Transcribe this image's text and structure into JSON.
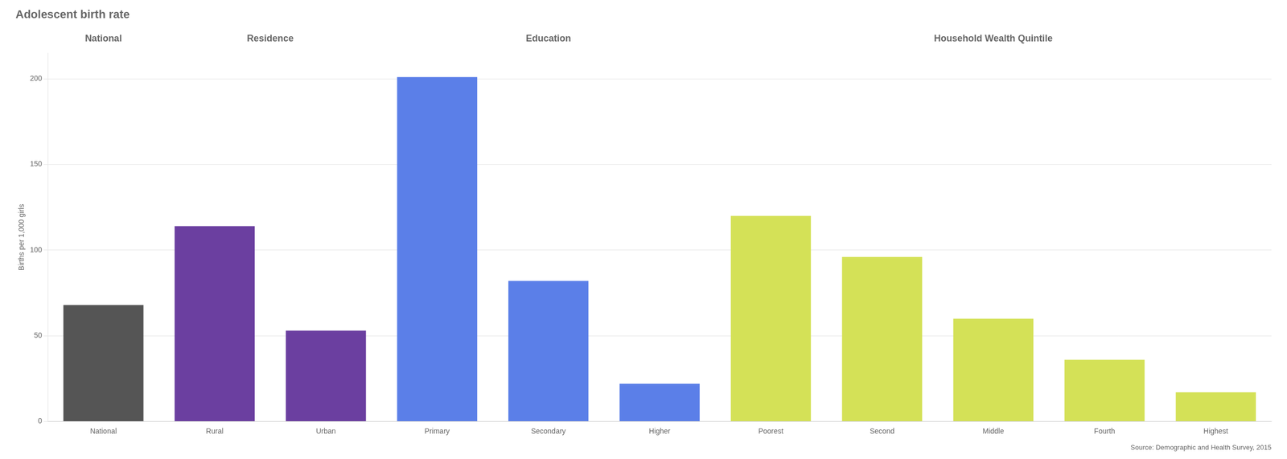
{
  "chart_data": {
    "type": "bar",
    "title": "Adolescent birth rate",
    "ylabel": "Births per 1,000 girls",
    "annotations": [
      "Source: Demographic and Health Survey, 2015"
    ],
    "categories": [
      "National",
      "Rural",
      "Urban",
      "Primary",
      "Secondary",
      "Higher",
      "Poorest",
      "Second",
      "Middle",
      "Fourth",
      "Highest"
    ],
    "values": [
      68,
      114,
      53,
      201,
      82,
      22,
      120,
      96,
      60,
      36,
      17
    ],
    "colors": [
      "#555555",
      "#6b3fa0",
      "#6b3fa0",
      "#5b7fe8",
      "#5b7fe8",
      "#5b7fe8",
      "#d4e157",
      "#d4e157",
      "#d4e157",
      "#d4e157",
      "#d4e157"
    ],
    "groups": [
      {
        "name": "National",
        "categories": [
          "National"
        ]
      },
      {
        "name": "Residence",
        "categories": [
          "Rural",
          "Urban"
        ]
      },
      {
        "name": "Education",
        "categories": [
          "Primary",
          "Secondary",
          "Higher"
        ]
      },
      {
        "name": "Household Wealth Quintile",
        "categories": [
          "Poorest",
          "Second",
          "Middle",
          "Fourth",
          "Highest"
        ]
      }
    ],
    "ylim": [
      0,
      215
    ],
    "yticks": [
      0,
      50,
      100,
      150,
      200
    ],
    "grid": true
  }
}
